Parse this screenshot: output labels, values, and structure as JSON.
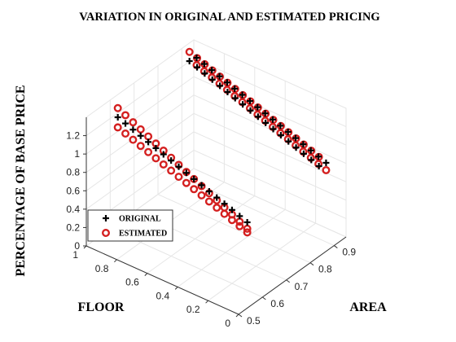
{
  "chart_data": {
    "type": "scatter3d",
    "title": "VARIATION IN ORIGINAL AND ESTIMATED PRICING",
    "xlabel": "FLOOR",
    "ylabel": "AREA",
    "zlabel": "PERCENTAGE OF BASE PRICE",
    "xlim": [
      0,
      1
    ],
    "ylim": [
      0.5,
      0.95
    ],
    "zlim": [
      0,
      1.4
    ],
    "x_ticks": [
      0,
      0.2,
      0.4,
      0.6,
      0.8,
      1
    ],
    "x_tick_labels": [
      "0",
      "0.2",
      "0.4",
      "0.6",
      "0.8",
      "1"
    ],
    "y_ticks": [
      0.5,
      0.6,
      0.7,
      0.8,
      0.9
    ],
    "y_tick_labels": [
      "0.5",
      "0.6",
      "0.7",
      "0.8",
      "0.9"
    ],
    "z_ticks": [
      0,
      0.2,
      0.4,
      0.6,
      0.8,
      1,
      1.2
    ],
    "z_tick_labels": [
      "0",
      "0.2",
      "0.4",
      "0.6",
      "0.8",
      "1",
      "1.2"
    ],
    "grid": true,
    "legend": {
      "position": "bottom-left",
      "entries": [
        "ORIGINAL",
        "ESTIMATED"
      ]
    },
    "series": [
      {
        "name": "ORIGINAL",
        "marker": "plus",
        "color": "#000000",
        "points": [
          [
            0.95,
            0.6,
            1.25
          ],
          [
            0.9,
            0.6,
            1.22
          ],
          [
            0.85,
            0.6,
            1.19
          ],
          [
            0.8,
            0.6,
            1.16
          ],
          [
            0.75,
            0.6,
            1.13
          ],
          [
            0.7,
            0.6,
            1.1
          ],
          [
            0.65,
            0.6,
            1.07
          ],
          [
            0.6,
            0.6,
            1.04
          ],
          [
            0.55,
            0.6,
            1.01
          ],
          [
            0.5,
            0.6,
            0.98
          ],
          [
            0.45,
            0.6,
            0.95
          ],
          [
            0.4,
            0.6,
            0.92
          ],
          [
            0.35,
            0.6,
            0.89
          ],
          [
            0.3,
            0.6,
            0.86
          ],
          [
            0.25,
            0.6,
            0.83
          ],
          [
            0.2,
            0.6,
            0.8
          ],
          [
            0.15,
            0.6,
            0.77
          ],
          [
            0.1,
            0.6,
            0.74
          ],
          [
            0.95,
            0.9,
            1.3
          ],
          [
            0.9,
            0.9,
            1.27
          ],
          [
            0.85,
            0.9,
            1.24
          ],
          [
            0.8,
            0.9,
            1.21
          ],
          [
            0.75,
            0.9,
            1.18
          ],
          [
            0.7,
            0.9,
            1.15
          ],
          [
            0.65,
            0.9,
            1.12
          ],
          [
            0.6,
            0.9,
            1.09
          ],
          [
            0.55,
            0.9,
            1.06
          ],
          [
            0.5,
            0.9,
            1.03
          ],
          [
            0.45,
            0.9,
            1.0
          ],
          [
            0.4,
            0.9,
            0.97
          ],
          [
            0.35,
            0.9,
            0.94
          ],
          [
            0.3,
            0.9,
            0.91
          ],
          [
            0.25,
            0.9,
            0.88
          ],
          [
            0.2,
            0.9,
            0.85
          ],
          [
            0.15,
            0.9,
            0.82
          ],
          [
            0.1,
            0.9,
            0.79
          ],
          [
            0.95,
            0.93,
            1.28
          ],
          [
            0.9,
            0.93,
            1.25
          ],
          [
            0.85,
            0.93,
            1.22
          ],
          [
            0.8,
            0.93,
            1.19
          ],
          [
            0.75,
            0.93,
            1.16
          ],
          [
            0.7,
            0.93,
            1.13
          ],
          [
            0.65,
            0.93,
            1.1
          ],
          [
            0.6,
            0.93,
            1.07
          ],
          [
            0.55,
            0.93,
            1.04
          ],
          [
            0.5,
            0.93,
            1.01
          ],
          [
            0.45,
            0.93,
            0.98
          ],
          [
            0.4,
            0.93,
            0.95
          ],
          [
            0.35,
            0.93,
            0.92
          ],
          [
            0.3,
            0.93,
            0.89
          ],
          [
            0.25,
            0.93,
            0.86
          ],
          [
            0.2,
            0.93,
            0.83
          ],
          [
            0.15,
            0.93,
            0.8
          ],
          [
            0.1,
            0.93,
            0.77
          ]
        ]
      },
      {
        "name": "ESTIMATED",
        "marker": "circle",
        "color": "#d42020",
        "points": [
          [
            0.95,
            0.6,
            1.35
          ],
          [
            0.9,
            0.6,
            1.31
          ],
          [
            0.85,
            0.6,
            1.27
          ],
          [
            0.8,
            0.6,
            1.23
          ],
          [
            0.75,
            0.6,
            1.19
          ],
          [
            0.7,
            0.6,
            1.15
          ],
          [
            0.65,
            0.6,
            1.11
          ],
          [
            0.6,
            0.6,
            1.07
          ],
          [
            0.55,
            0.6,
            1.03
          ],
          [
            0.5,
            0.6,
            0.99
          ],
          [
            0.45,
            0.6,
            0.95
          ],
          [
            0.4,
            0.6,
            0.91
          ],
          [
            0.35,
            0.6,
            0.87
          ],
          [
            0.3,
            0.6,
            0.83
          ],
          [
            0.25,
            0.6,
            0.79
          ],
          [
            0.2,
            0.6,
            0.75
          ],
          [
            0.15,
            0.6,
            0.71
          ],
          [
            0.1,
            0.6,
            0.67
          ],
          [
            0.95,
            0.6,
            1.14
          ],
          [
            0.9,
            0.6,
            1.11
          ],
          [
            0.85,
            0.6,
            1.08
          ],
          [
            0.8,
            0.6,
            1.05
          ],
          [
            0.75,
            0.6,
            1.02
          ],
          [
            0.7,
            0.6,
            0.99
          ],
          [
            0.65,
            0.6,
            0.96
          ],
          [
            0.6,
            0.6,
            0.93
          ],
          [
            0.55,
            0.6,
            0.9
          ],
          [
            0.5,
            0.6,
            0.87
          ],
          [
            0.45,
            0.6,
            0.84
          ],
          [
            0.4,
            0.6,
            0.81
          ],
          [
            0.35,
            0.6,
            0.78
          ],
          [
            0.3,
            0.6,
            0.75
          ],
          [
            0.25,
            0.6,
            0.72
          ],
          [
            0.2,
            0.6,
            0.69
          ],
          [
            0.15,
            0.6,
            0.66
          ],
          [
            0.1,
            0.6,
            0.63
          ],
          [
            0.95,
            0.9,
            1.4
          ],
          [
            0.9,
            0.9,
            1.37
          ],
          [
            0.85,
            0.9,
            1.34
          ],
          [
            0.8,
            0.9,
            1.31
          ],
          [
            0.75,
            0.9,
            1.28
          ],
          [
            0.7,
            0.9,
            1.25
          ],
          [
            0.65,
            0.9,
            1.22
          ],
          [
            0.6,
            0.9,
            1.19
          ],
          [
            0.55,
            0.9,
            1.16
          ],
          [
            0.5,
            0.9,
            1.13
          ],
          [
            0.45,
            0.9,
            1.1
          ],
          [
            0.4,
            0.9,
            1.07
          ],
          [
            0.35,
            0.9,
            1.04
          ],
          [
            0.3,
            0.9,
            1.01
          ],
          [
            0.25,
            0.9,
            0.98
          ],
          [
            0.2,
            0.9,
            0.95
          ],
          [
            0.15,
            0.9,
            0.92
          ],
          [
            0.1,
            0.9,
            0.89
          ],
          [
            0.95,
            0.93,
            1.2
          ],
          [
            0.9,
            0.93,
            1.17
          ],
          [
            0.85,
            0.93,
            1.14
          ],
          [
            0.8,
            0.93,
            1.11
          ],
          [
            0.75,
            0.93,
            1.08
          ],
          [
            0.7,
            0.93,
            1.05
          ],
          [
            0.65,
            0.93,
            1.02
          ],
          [
            0.6,
            0.93,
            0.99
          ],
          [
            0.55,
            0.93,
            0.96
          ],
          [
            0.5,
            0.93,
            0.93
          ],
          [
            0.45,
            0.93,
            0.9
          ],
          [
            0.4,
            0.93,
            0.87
          ],
          [
            0.35,
            0.93,
            0.84
          ],
          [
            0.3,
            0.93,
            0.81
          ],
          [
            0.25,
            0.93,
            0.78
          ],
          [
            0.2,
            0.93,
            0.75
          ],
          [
            0.15,
            0.93,
            0.72
          ],
          [
            0.1,
            0.93,
            0.69
          ]
        ]
      }
    ]
  }
}
